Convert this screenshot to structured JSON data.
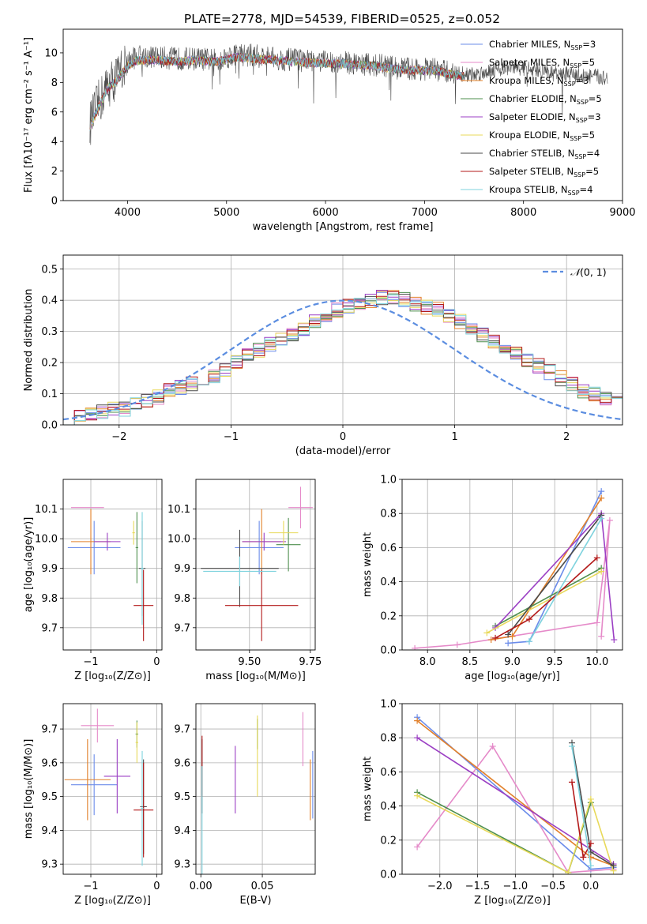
{
  "title": "PLATE=2778, MJD=54539, FIBERID=0525, z=0.052",
  "colors": [
    "#6b8cea",
    "#e58ac9",
    "#e2802a",
    "#4e8f4e",
    "#9b3fc4",
    "#e8d95a",
    "#4a4a4a",
    "#b31919",
    "#7fd3de"
  ],
  "chart_data": [
    {
      "id": "spectrum",
      "type": "line",
      "xlabel": "wavelength [Angstrom, rest frame]",
      "ylabel": "Flux [fλ10⁻¹⁷ erg cm⁻² s⁻¹ A⁻¹]",
      "xlim": [
        3350,
        9000
      ],
      "ylim": [
        0,
        11.6
      ],
      "xticks": [
        4000,
        5000,
        6000,
        7000,
        8000,
        9000
      ],
      "yticks": [
        0,
        2,
        4,
        6,
        8,
        10
      ],
      "grid": false,
      "legend": "top-right",
      "legend_names": [
        "Chabrier MILES, N",
        "Salpeter MILES, N",
        "Kroupa MILES, N",
        "Chabrier ELODIE, N",
        "Salpeter ELODIE, N",
        "Kroupa ELODIE, N",
        "Chabrier STELIB, N",
        "Salpeter STELIB, N",
        "Kroupa STELIB, N"
      ],
      "legend_sub": "SSP",
      "legend_nssp": [
        "=3",
        "=5",
        "=3",
        "=5",
        "=3",
        "=5",
        "=4",
        "=5",
        "=4"
      ],
      "data_color": "#808080",
      "data_spectrum": {
        "x": [
          3620,
          3700,
          3800,
          3900,
          4000,
          4100,
          4300,
          4500,
          4700,
          4900,
          5100,
          5300,
          5500,
          5700,
          5900,
          6100,
          6300,
          6500,
          6700,
          6900,
          7100,
          7300,
          7500,
          7700,
          7900,
          8100,
          8300,
          8500,
          8700,
          8850
        ],
        "y": [
          5.2,
          6.5,
          7.8,
          8.4,
          9.4,
          9.8,
          9.7,
          9.6,
          9.6,
          9.5,
          9.9,
          9.8,
          9.6,
          9.5,
          9.4,
          9.4,
          9.3,
          9.2,
          9.0,
          8.9,
          8.9,
          8.6,
          8.5,
          8.9,
          9.0,
          8.9,
          8.6,
          8.5,
          8.4,
          8.3
        ]
      },
      "model_x": [
        3620,
        3700,
        3800,
        3900,
        4000,
        4100,
        4300,
        4500,
        4700,
        4900,
        5100,
        5300,
        5500,
        5700,
        5900,
        6100,
        6300,
        6500,
        6700,
        6900,
        7100,
        7300,
        7400
      ],
      "model_y": [
        5.0,
        6.2,
        7.6,
        8.2,
        9.1,
        9.5,
        9.5,
        9.4,
        9.5,
        9.4,
        9.7,
        9.6,
        9.5,
        9.4,
        9.3,
        9.3,
        9.2,
        9.1,
        8.9,
        8.8,
        8.8,
        8.5,
        8.4
      ]
    },
    {
      "id": "residuals",
      "type": "line",
      "xlabel": "(data-model)/error",
      "ylabel": "Normed distribution",
      "xlim": [
        -2.5,
        2.5
      ],
      "ylim": [
        0,
        0.545
      ],
      "xticks": [
        -2,
        -1,
        0,
        1,
        2
      ],
      "yticks": [
        0.0,
        0.1,
        0.2,
        0.3,
        0.4,
        0.5
      ],
      "grid": true,
      "legend": "top-right",
      "gaussian_label": "(0, 1)",
      "bin_width": 0.1,
      "hist_base": [
        0.02,
        0.03,
        0.03,
        0.04,
        0.05,
        0.05,
        0.07,
        0.08,
        0.09,
        0.11,
        0.12,
        0.13,
        0.14,
        0.16,
        0.18,
        0.2,
        0.22,
        0.24,
        0.26,
        0.28,
        0.29,
        0.31,
        0.33,
        0.35,
        0.37,
        0.38,
        0.39,
        0.4,
        0.41,
        0.41,
        0.4,
        0.39,
        0.38,
        0.37,
        0.35,
        0.33,
        0.31,
        0.29,
        0.27,
        0.25,
        0.23,
        0.21,
        0.19,
        0.17,
        0.15,
        0.13,
        0.11,
        0.1,
        0.08,
        0.07
      ]
    },
    {
      "id": "age-vs-z",
      "type": "scatter",
      "xlabel": "Z [log₁₀(Z/Z⊙)]",
      "ylabel": "age  [log₁₀(age/yr)]",
      "xlim": [
        -1.42,
        0.08
      ],
      "ylim": [
        9.625,
        10.2
      ],
      "xticks": [
        -1,
        0
      ],
      "xticklabels": [
        "−1",
        "0"
      ],
      "yticks": [
        9.7,
        9.8,
        9.9,
        10.0,
        10.1
      ],
      "grid": true,
      "points": [
        [
          -0.95,
          9.97,
          0.4,
          0.09
        ],
        [
          -1.05,
          10.105,
          0.25,
          0.0
        ],
        [
          -1.0,
          9.99,
          0.3,
          0.11
        ],
        [
          -0.3,
          9.97,
          0.02,
          0.12
        ],
        [
          -0.75,
          9.99,
          0.2,
          0.03
        ],
        [
          -0.35,
          10.02,
          0.02,
          0.04
        ],
        [
          -0.22,
          9.9,
          0.05,
          0.16
        ],
        [
          -0.2,
          9.775,
          0.15,
          0.12
        ],
        [
          -0.22,
          9.9,
          0.02,
          0.19
        ]
      ]
    },
    {
      "id": "age-vs-mass",
      "type": "scatter",
      "xlabel": "mass [log₁₀(M/M⊙)]",
      "ylabel": "",
      "xlim": [
        9.28,
        9.77
      ],
      "ylim": [
        9.625,
        10.2
      ],
      "xticks": [
        9.5,
        9.75
      ],
      "yticks": [
        9.7,
        9.8,
        9.9,
        10.0,
        10.1
      ],
      "grid": true,
      "points": [
        [
          9.54,
          9.97,
          0.1,
          0.09
        ],
        [
          9.71,
          10.105,
          0.05,
          0.07
        ],
        [
          9.55,
          9.99,
          0.08,
          0.11
        ],
        [
          9.66,
          9.98,
          0.05,
          0.09
        ],
        [
          9.56,
          9.99,
          0.09,
          0.03
        ],
        [
          9.64,
          10.02,
          0.06,
          0.04
        ],
        [
          9.46,
          9.9,
          0.16,
          0.13
        ],
        [
          9.55,
          9.775,
          0.15,
          0.12
        ],
        [
          9.46,
          9.89,
          0.15,
          0.05
        ]
      ]
    },
    {
      "id": "weight-vs-age",
      "type": "line",
      "xlabel": "age  [log₁₀(age/yr)]",
      "ylabel": "mass weight",
      "xlim": [
        7.7,
        10.3
      ],
      "ylim": [
        0,
        1.0
      ],
      "xticks": [
        8.0,
        8.5,
        9.0,
        9.5,
        10.0
      ],
      "yticks": [
        0.0,
        0.2,
        0.4,
        0.6,
        0.8,
        1.0
      ],
      "grid": true,
      "series": [
        {
          "x": [
            8.95,
            9.2,
            10.05
          ],
          "y": [
            0.04,
            0.05,
            0.93
          ]
        },
        {
          "x": [
            7.85,
            8.35,
            10.0,
            10.15,
            10.05
          ],
          "y": [
            0.01,
            0.03,
            0.16,
            0.76,
            0.08
          ]
        },
        {
          "x": [
            8.75,
            9.0,
            10.05
          ],
          "y": [
            0.06,
            0.08,
            0.89
          ]
        },
        {
          "x": [
            8.8,
            10.05
          ],
          "y": [
            0.14,
            0.48
          ]
        },
        {
          "x": [
            8.8,
            10.05,
            10.2
          ],
          "y": [
            0.13,
            0.8,
            0.06
          ]
        },
        {
          "x": [
            8.7,
            10.05
          ],
          "y": [
            0.1,
            0.46
          ]
        },
        {
          "x": [
            8.95,
            10.05
          ],
          "y": [
            0.09,
            0.79
          ]
        },
        {
          "x": [
            8.8,
            9.2,
            10.0
          ],
          "y": [
            0.07,
            0.18,
            0.54
          ]
        },
        {
          "x": [
            9.2,
            10.05
          ],
          "y": [
            0.05,
            0.77
          ]
        }
      ]
    },
    {
      "id": "mass-vs-z",
      "type": "scatter",
      "xlabel": "Z [log₁₀(Z/Z⊙)]",
      "ylabel": "mass [log₁₀(M/M⊙)]",
      "xlim": [
        -1.42,
        0.08
      ],
      "ylim": [
        9.27,
        9.775
      ],
      "xticks": [
        -1,
        0
      ],
      "xticklabels": [
        "−1",
        "0"
      ],
      "yticks": [
        9.3,
        9.4,
        9.5,
        9.6,
        9.7
      ],
      "grid": true,
      "points": [
        [
          -0.95,
          9.535,
          0.35,
          0.09
        ],
        [
          -0.9,
          9.71,
          0.25,
          0.05
        ],
        [
          -1.05,
          9.55,
          0.35,
          0.12
        ],
        [
          -0.3,
          9.685,
          0.02,
          0.04
        ],
        [
          -0.6,
          9.56,
          0.2,
          0.11
        ],
        [
          -0.3,
          9.66,
          0.02,
          0.06
        ],
        [
          -0.2,
          9.47,
          0.05,
          0.14
        ],
        [
          -0.2,
          9.46,
          0.15,
          0.14
        ],
        [
          -0.22,
          9.465,
          0.02,
          0.17
        ]
      ]
    },
    {
      "id": "mass-vs-ebv",
      "type": "scatter",
      "xlabel": "E(B-V)",
      "ylabel": "",
      "xlim": [
        -0.004,
        0.093
      ],
      "ylim": [
        9.27,
        9.775
      ],
      "xticks": [
        0.0,
        0.05
      ],
      "xticklabels": [
        "0.00",
        "0.05"
      ],
      "yticks": [
        9.3,
        9.4,
        9.5,
        9.6,
        9.7
      ],
      "grid": true,
      "points": [
        [
          0.091,
          9.535,
          0,
          0.1
        ],
        [
          0.083,
          9.67,
          0,
          0.08
        ],
        [
          0.089,
          9.52,
          0,
          0.09
        ],
        [
          0.046,
          9.685,
          0,
          0.045
        ],
        [
          0.028,
          9.55,
          0,
          0.1
        ],
        [
          0.046,
          9.62,
          0,
          0.12
        ],
        [
          0.001,
          9.56,
          0,
          0.11
        ],
        [
          0.001,
          9.59,
          0,
          0.09
        ],
        [
          0.001,
          9.4,
          0,
          0.19
        ]
      ]
    },
    {
      "id": "weight-vs-z",
      "type": "line",
      "xlabel": "Z [log₁₀(Z/Z⊙)]",
      "ylabel": "mass weight",
      "xlim": [
        -2.5,
        0.42
      ],
      "ylim": [
        0,
        1.0
      ],
      "xticks": [
        -2.0,
        -1.5,
        -1.0,
        -0.5,
        0.0
      ],
      "xticklabels": [
        "−2.0",
        "−1.5",
        "−1.0",
        "−0.5",
        "0.0"
      ],
      "yticks": [
        0.0,
        0.2,
        0.4,
        0.6,
        0.8,
        1.0
      ],
      "grid": true,
      "series": [
        {
          "x": [
            -2.3,
            0.0,
            0.3
          ],
          "y": [
            0.92,
            0.03,
            0.04
          ]
        },
        {
          "x": [
            -2.3,
            -1.3,
            -0.3,
            0.3
          ],
          "y": [
            0.16,
            0.75,
            0.01,
            0.03
          ]
        },
        {
          "x": [
            -2.3,
            0.0,
            0.3
          ],
          "y": [
            0.9,
            0.1,
            0.05
          ]
        },
        {
          "x": [
            -2.3,
            -0.3,
            0.0
          ],
          "y": [
            0.48,
            0.01,
            0.42
          ]
        },
        {
          "x": [
            -2.3,
            0.3
          ],
          "y": [
            0.8,
            0.06
          ]
        },
        {
          "x": [
            -2.3,
            -0.3,
            0.0,
            0.3
          ],
          "y": [
            0.46,
            0.01,
            0.44,
            0.02
          ]
        },
        {
          "x": [
            -0.25,
            0.0,
            0.3
          ],
          "y": [
            0.77,
            0.13,
            0.05
          ]
        },
        {
          "x": [
            -0.25,
            -0.1,
            0.0
          ],
          "y": [
            0.54,
            0.1,
            0.18
          ]
        },
        {
          "x": [
            -0.25,
            0.0
          ],
          "y": [
            0.75,
            0.05
          ]
        }
      ]
    }
  ]
}
